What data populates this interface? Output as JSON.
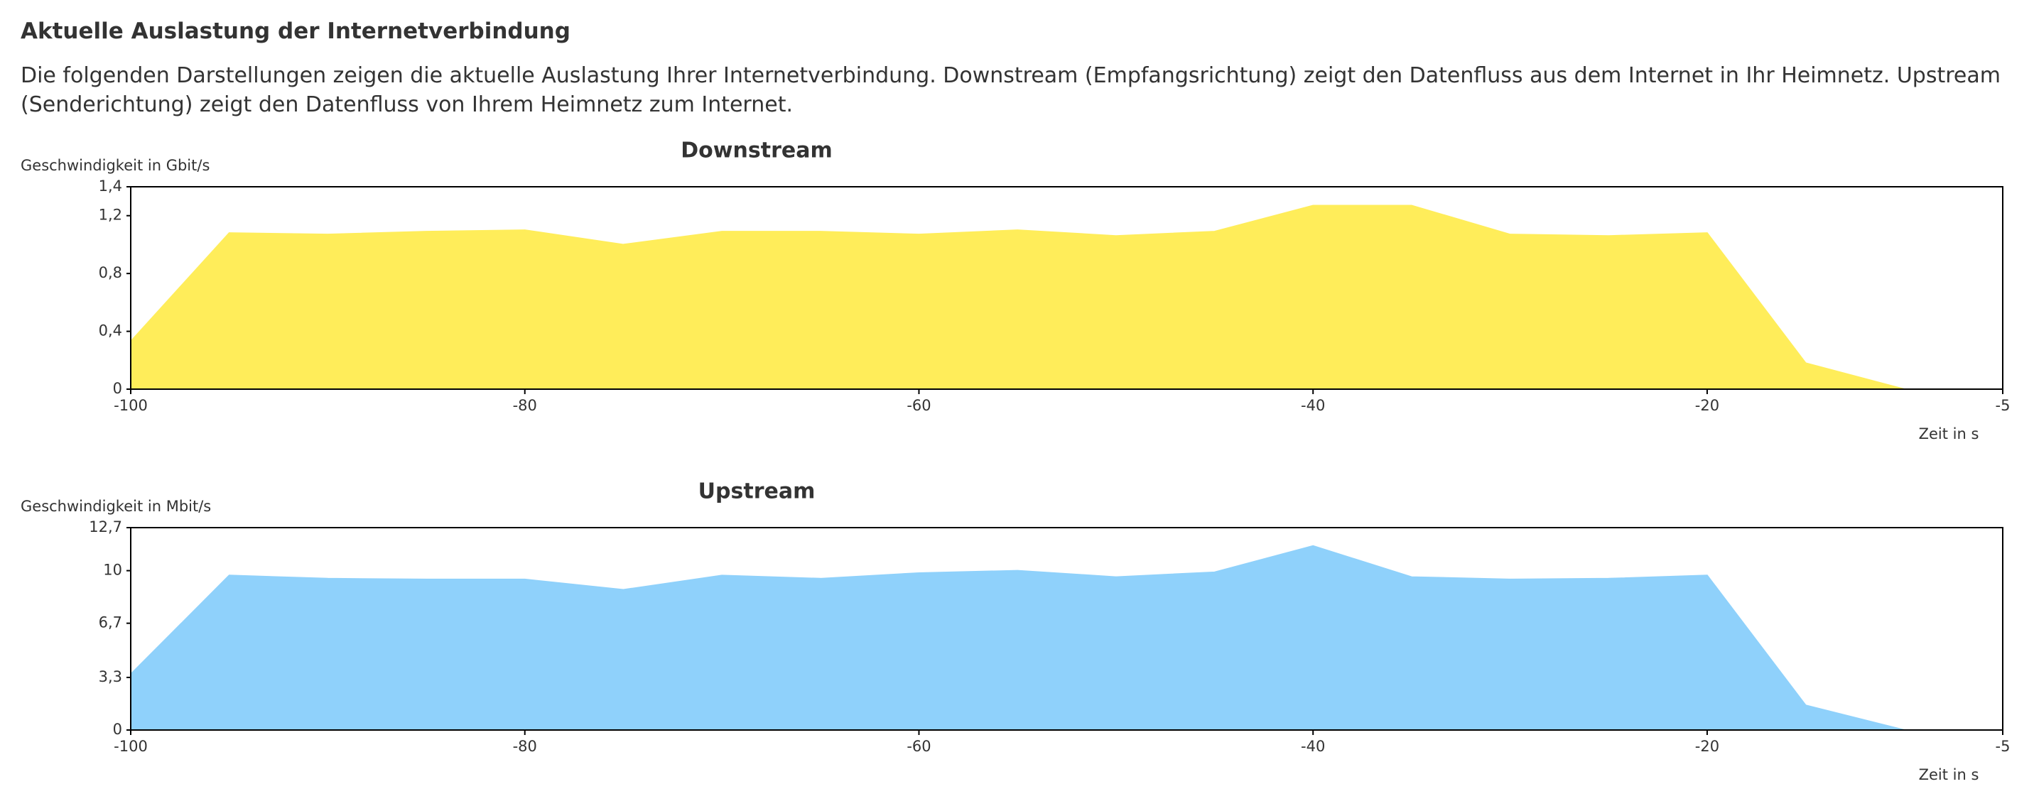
{
  "header": {
    "title": "Aktuelle Auslastung der Internetverbindung",
    "description": "Die folgenden Darstellungen zeigen die aktuelle Auslastung Ihrer Internetverbindung. Downstream (Empfangsrichtung) zeigt den Datenfluss aus dem Internet in Ihr Heimnetz. Upstream (Senderichtung) zeigt den Datenfluss von Ihrem Heimnetz zum Internet."
  },
  "chart_data": [
    {
      "type": "area",
      "title": "Downstream",
      "y_label": "Geschwindigkeit in Gbit/s",
      "x_label": "Zeit in s",
      "x": [
        -100,
        -95,
        -90,
        -85,
        -80,
        -75,
        -70,
        -65,
        -60,
        -55,
        -50,
        -45,
        -40,
        -35,
        -30,
        -25,
        -20,
        -15,
        -10,
        -5
      ],
      "series": [
        {
          "name": "Downstream",
          "color": "#ffed5a",
          "values": [
            0.33,
            1.08,
            1.07,
            1.09,
            1.1,
            1.0,
            1.09,
            1.09,
            1.07,
            1.1,
            1.06,
            1.09,
            1.27,
            1.27,
            1.07,
            1.06,
            1.08,
            0.18,
            0,
            0
          ]
        }
      ],
      "xlim": [
        -100,
        -5
      ],
      "xticks": [
        -100,
        -80,
        -60,
        -40,
        -20,
        -5
      ],
      "ylim": [
        0,
        1.4
      ],
      "yticks": [
        0,
        {
          "value": 0.4,
          "label": "0,4"
        },
        {
          "value": 0.8,
          "label": "0,8"
        },
        {
          "value": 1.2,
          "label": "1,2"
        },
        {
          "value": 1.4,
          "label": "1,4"
        }
      ]
    },
    {
      "type": "area",
      "title": "Upstream",
      "y_label": "Geschwindigkeit in Mbit/s",
      "x_label": "Zeit in s",
      "x": [
        -100,
        -95,
        -90,
        -85,
        -80,
        -75,
        -70,
        -65,
        -60,
        -55,
        -50,
        -45,
        -40,
        -35,
        -30,
        -25,
        -20,
        -15,
        -10,
        -5
      ],
      "series": [
        {
          "name": "Upstream",
          "color": "#8fd1fb",
          "values": [
            3.5,
            9.7,
            9.5,
            9.45,
            9.45,
            8.8,
            9.7,
            9.5,
            9.85,
            10.0,
            9.6,
            9.9,
            11.55,
            9.6,
            9.45,
            9.5,
            9.7,
            1.55,
            0,
            0
          ]
        }
      ],
      "xlim": [
        -100,
        -5
      ],
      "xticks": [
        -100,
        -80,
        -60,
        -40,
        -20,
        -5
      ],
      "ylim": [
        0,
        12.7
      ],
      "yticks": [
        0,
        {
          "value": 3.3,
          "label": "3,3"
        },
        {
          "value": 6.7,
          "label": "6,7"
        },
        10,
        {
          "value": 12.7,
          "label": "12,7"
        }
      ]
    }
  ]
}
